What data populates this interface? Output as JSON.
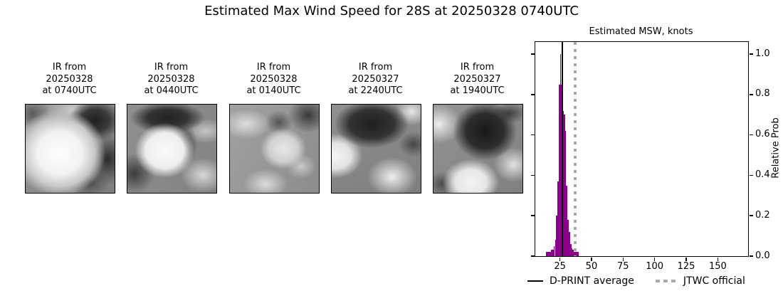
{
  "figure_title": "Estimated Max Wind Speed for 28S at 20250328 0740UTC",
  "ir_panels": [
    {
      "line1": "IR from",
      "line2": "20250328",
      "line3": "at 0740UTC"
    },
    {
      "line1": "IR from",
      "line2": "20250328",
      "line3": "at 0440UTC"
    },
    {
      "line1": "IR from",
      "line2": "20250328",
      "line3": "at 0140UTC"
    },
    {
      "line1": "IR from",
      "line2": "20250327",
      "line3": "at 2240UTC"
    },
    {
      "line1": "IR from",
      "line2": "20250327",
      "line3": "at 1940UTC"
    }
  ],
  "chart_data": {
    "type": "bar",
    "title": "Estimated MSW, knots",
    "xlabel": "",
    "ylabel": "Relative Prob",
    "xlim": [
      5.5,
      174
    ],
    "ylim": [
      0,
      1.06
    ],
    "x_ticks": [
      25,
      50,
      75,
      100,
      125,
      150
    ],
    "y_ticks": [
      0.0,
      0.2,
      0.4,
      0.6,
      0.8,
      1.0
    ],
    "grid": false,
    "bar_color": "#8b008b",
    "bins": {
      "start_knots": 14,
      "bin_width_knots": 1,
      "values": [
        0.02,
        0.02,
        0.02,
        0.02,
        0.03,
        0.03,
        0.05,
        0.08,
        0.2,
        0.37,
        0.85,
        1.0,
        0.85,
        0.72,
        0.7,
        0.62,
        0.35,
        0.18,
        0.12,
        0.06,
        0.04,
        0.03,
        0.02,
        0.02,
        0.02,
        0.02
      ]
    },
    "average_line": {
      "label": "D-PRINT average",
      "value_knots": 26.9,
      "color": "#000000",
      "style": "solid"
    },
    "official_line": {
      "label": "JTWC official",
      "value_knots": 37,
      "color": "#ababab",
      "style": "dotted"
    },
    "legend_position": "bottom"
  }
}
